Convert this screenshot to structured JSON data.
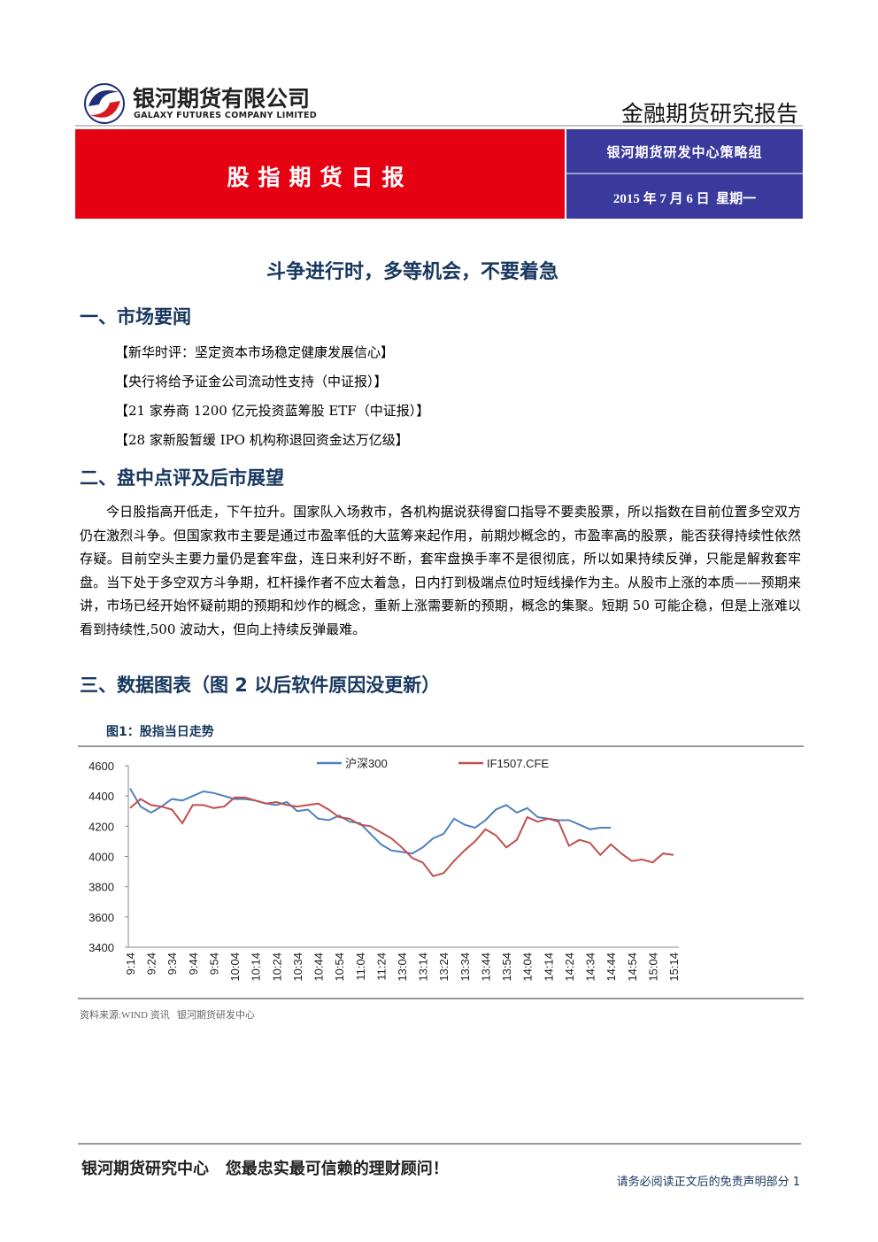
{
  "header": {
    "company": "银河期货有限公司",
    "company_en": "GALAXY FUTURES COMPANY LIMITED",
    "report_type": "金融期货研究报告"
  },
  "banner": {
    "title": "股指期货日报",
    "team": "银河期货研发中心策略组",
    "date": "2015 年 7 月 6 日  星期一"
  },
  "headline": "斗争进行时，多等机会，不要着急",
  "sections": [
    {
      "heading": "一、市场要闻",
      "items": [
        "【新华时评：坚定资本市场稳定健康发展信心】",
        "【央行将给予证金公司流动性支持（中证报）】",
        "【21 家券商 1200 亿元投资蓝筹股 ETF（中证报）】",
        "【28 家新股暂缓 IPO 机构称退回资金达万亿级】"
      ]
    },
    {
      "heading": "二、盘中点评及后市展望",
      "paragraph": "今日股指高开低走，下午拉升。国家队入场救市，各机构据说获得窗口指导不要卖股票，所以指数在目前位置多空双方仍在激烈斗争。但国家救市主要是通过市盈率低的大蓝筹来起作用，前期炒概念的，市盈率高的股票，能否获得持续性依然存疑。目前空头主要力量仍是套牢盘，连日来利好不断，套牢盘换手率不是很彻底，所以如果持续反弹，只能是解救套牢盘。当下处于多空双方斗争期，杠杆操作者不应太着急，日内打到极端点位时短线操作为主。从股市上涨的本质——预期来讲，市场已经开始怀疑前期的预期和炒作的概念，重新上涨需要新的预期，概念的集聚。短期 50 可能企稳，但是上涨难以看到持续性,500 波动大，但向上持续反弹最难。"
    },
    {
      "heading": "三、数据图表（图 2 以后软件原因没更新）"
    }
  ],
  "figure": {
    "caption": "图1：股指当日走势",
    "source": "资料来源:WIND 资讯   银河期货研发中心"
  },
  "chart_data": {
    "type": "line",
    "categories": [
      "9:14",
      null,
      "9:24",
      null,
      "9:34",
      null,
      "9:44",
      null,
      "9:54",
      null,
      "10:04",
      null,
      "10:14",
      null,
      "10:24",
      null,
      "10:34",
      null,
      "10:44",
      null,
      "10:54",
      null,
      "11:04",
      null,
      "11:24",
      null,
      "13:04",
      null,
      "13:14",
      null,
      "13:24",
      null,
      "13:34",
      null,
      "13:44",
      null,
      "13:54",
      null,
      "14:04",
      null,
      "14:14",
      null,
      "14:24",
      null,
      "14:34",
      null,
      "14:44",
      null,
      "14:54",
      null,
      "15:04",
      null,
      "15:14"
    ],
    "series": [
      {
        "name": "沪深300",
        "color": "#4f81bd",
        "values": [
          4450,
          4330,
          4290,
          4330,
          4380,
          4370,
          4400,
          4430,
          4420,
          4400,
          4380,
          4380,
          4370,
          4350,
          4340,
          4360,
          4300,
          4310,
          4250,
          4240,
          4270,
          4230,
          4220,
          4150,
          4080,
          4040,
          4030,
          4020,
          4060,
          4120,
          4150,
          4250,
          4210,
          4190,
          4240,
          4310,
          4340,
          4290,
          4320,
          4260,
          4250,
          4240,
          4240,
          4210,
          4180,
          4190,
          4190,
          null,
          null,
          null,
          null,
          null,
          null
        ]
      },
      {
        "name": "IF1507.CFE",
        "color": "#c0504d",
        "values": [
          4320,
          4380,
          4340,
          4330,
          4310,
          4220,
          4340,
          4340,
          4320,
          4330,
          4390,
          4390,
          4370,
          4350,
          4360,
          4340,
          4330,
          4340,
          4350,
          4310,
          4260,
          4250,
          4210,
          4200,
          4160,
          4120,
          4060,
          3990,
          3960,
          3870,
          3890,
          3970,
          4040,
          4100,
          4180,
          4140,
          4060,
          4110,
          4260,
          4230,
          4250,
          4230,
          4070,
          4110,
          4090,
          4010,
          4080,
          4020,
          3970,
          3980,
          3960,
          4020,
          4010
        ]
      }
    ],
    "ylim": [
      3400,
      4600
    ],
    "yticks": [
      3400,
      3600,
      3800,
      4000,
      4200,
      4400,
      4600
    ],
    "grid": false,
    "legend": "top"
  },
  "footer": {
    "slogan": "银河期货研究中心   您最忠实最可信赖的理财顾问！",
    "disclaimer": "请务必阅读正文后的免责声明部分",
    "page": 1
  }
}
